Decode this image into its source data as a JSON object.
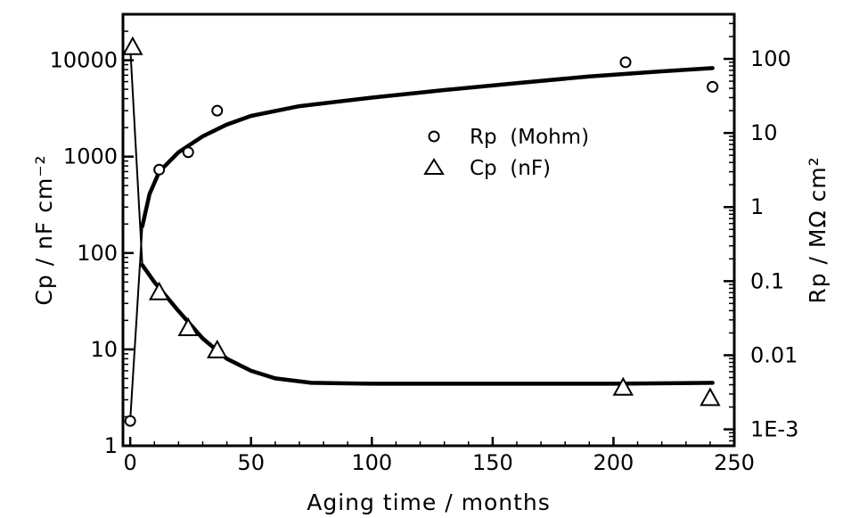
{
  "chart_data": {
    "type": "scatter",
    "xlabel": "Aging   time  /  months",
    "ylabel_left": "Cp / nF  cm⁻²",
    "ylabel_right": "Rp / MΩ  cm²",
    "xlim": [
      -3,
      250
    ],
    "ylim_left": [
      1,
      30000
    ],
    "ylim_right": [
      0.0006,
      400
    ],
    "left_scale": "log",
    "right_scale": "log",
    "x_ticks": [
      0,
      50,
      100,
      150,
      200,
      250
    ],
    "x_tick_labels": [
      "0",
      "50",
      "100",
      "150",
      "200",
      "250"
    ],
    "left_ticks": [
      1,
      10,
      100,
      1000,
      10000
    ],
    "left_tick_labels": [
      "1",
      "10",
      "100",
      "1000",
      "10000"
    ],
    "right_ticks": [
      0.001,
      0.01,
      0.1,
      1,
      10,
      100
    ],
    "right_tick_labels": [
      "1E-3",
      "0.01",
      "0.1",
      "1",
      "10",
      "100"
    ],
    "legend_placement": "upper-center",
    "grid": false,
    "series": [
      {
        "name": "Rp  (Mohm)",
        "marker": "circle",
        "axis": "right",
        "points": [
          [
            0,
            0.0013
          ],
          [
            12,
            3.2
          ],
          [
            24,
            5.5
          ],
          [
            36,
            20
          ],
          [
            205,
            90
          ],
          [
            241,
            42
          ]
        ],
        "fit": [
          [
            0,
            0.0013
          ],
          [
            5,
            0.55
          ],
          [
            8,
            1.5
          ],
          [
            12,
            3.0
          ],
          [
            20,
            5.5
          ],
          [
            30,
            9
          ],
          [
            40,
            13
          ],
          [
            50,
            17
          ],
          [
            70,
            23
          ],
          [
            100,
            30
          ],
          [
            130,
            38
          ],
          [
            160,
            47
          ],
          [
            190,
            58
          ],
          [
            220,
            68
          ],
          [
            241,
            75
          ]
        ]
      },
      {
        "name": "Cp  (nF)",
        "marker": "triangle",
        "axis": "left",
        "points": [
          [
            1,
            14000
          ],
          [
            12,
            40
          ],
          [
            24,
            17
          ],
          [
            36,
            10
          ],
          [
            204,
            4.1
          ],
          [
            240,
            3.2
          ]
        ],
        "fit": [
          [
            0,
            14000
          ],
          [
            5,
            75
          ],
          [
            10,
            50
          ],
          [
            20,
            25
          ],
          [
            30,
            13
          ],
          [
            40,
            8
          ],
          [
            50,
            6
          ],
          [
            60,
            5
          ],
          [
            75,
            4.5
          ],
          [
            100,
            4.4
          ],
          [
            150,
            4.4
          ],
          [
            200,
            4.4
          ],
          [
            241,
            4.5
          ]
        ]
      }
    ]
  }
}
